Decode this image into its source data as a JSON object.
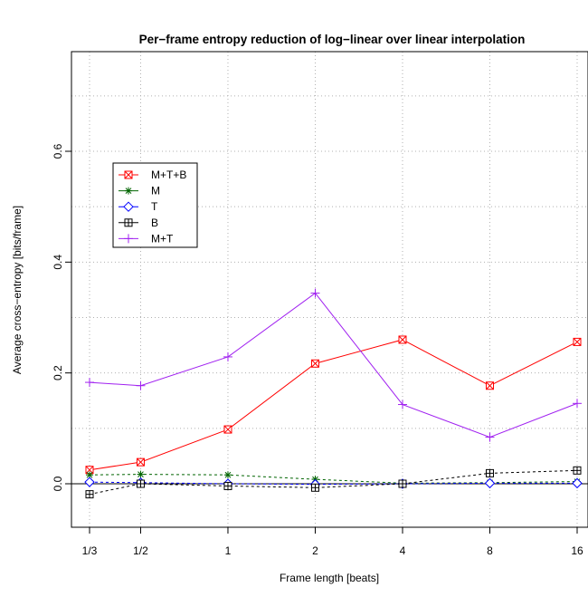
{
  "chart_data": {
    "type": "line",
    "title": "Per−frame entropy reduction of log−linear over linear interpolation",
    "xlabel": "Frame length [beats]",
    "ylabel": "Average cross−entropy [bits/frame]",
    "categories": [
      "1/3",
      "1/2",
      "1",
      "2",
      "4",
      "8",
      "16"
    ],
    "x": [
      0.3333,
      0.5,
      1,
      2,
      4,
      8,
      16
    ],
    "x_scale": "log",
    "ylim": [
      -0.08,
      0.78
    ],
    "yticks": [
      0.0,
      0.2,
      0.4,
      0.6
    ],
    "ytick_labels": [
      "0.0",
      "0.2",
      "0.4",
      "0.6"
    ],
    "grid": true,
    "legend_position": "upper-left",
    "series": [
      {
        "name": "M+T+B",
        "color": "#ff0000",
        "marker": "square-x",
        "line": "solid",
        "values": [
          0.025,
          0.039,
          0.098,
          0.217,
          0.26,
          0.177,
          0.256
        ]
      },
      {
        "name": "M",
        "color": "#006400",
        "marker": "asterisk",
        "line": "dashed",
        "values": [
          0.016,
          0.017,
          0.016,
          0.008,
          0.001,
          0.002,
          0.004
        ]
      },
      {
        "name": "T",
        "color": "#0000ff",
        "marker": "diamond",
        "line": "dashed",
        "values": [
          0.003,
          0.002,
          0.0,
          -0.001,
          0.0,
          0.001,
          0.001
        ]
      },
      {
        "name": "B",
        "color": "#000000",
        "marker": "square-plus",
        "line": "dashed",
        "values": [
          -0.019,
          0.0,
          -0.004,
          -0.007,
          0.0,
          0.019,
          0.024
        ]
      },
      {
        "name": "M+T",
        "color": "#a020f0",
        "marker": "plus",
        "line": "solid",
        "values": [
          0.183,
          0.177,
          0.229,
          0.344,
          0.143,
          0.084,
          0.145
        ]
      }
    ]
  }
}
